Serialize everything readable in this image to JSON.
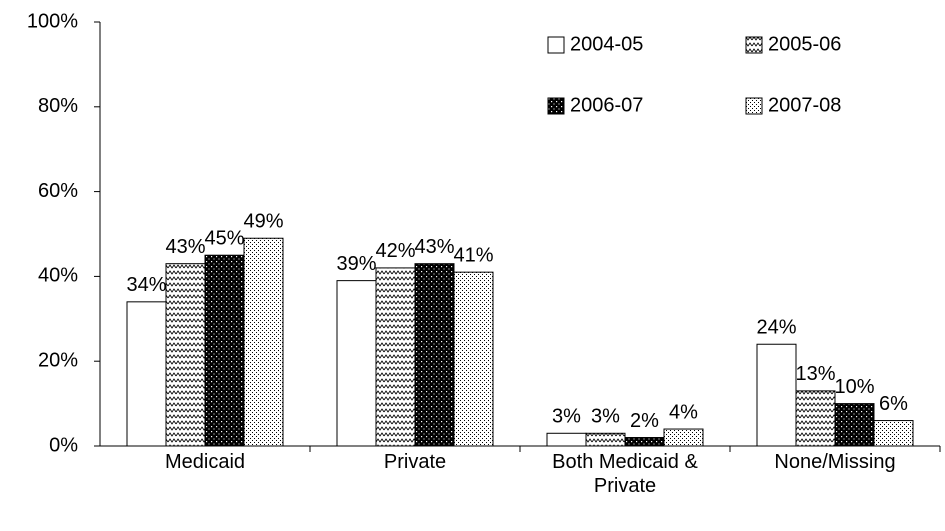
{
  "chart_data": {
    "type": "bar",
    "categories": [
      "Medicaid",
      "Private",
      "Both Medicaid & Private",
      "None/Missing"
    ],
    "series": [
      {
        "name": "2004-05",
        "color": "#ffffff",
        "pattern": "solid",
        "values": [
          34,
          39,
          3,
          24
        ],
        "value_labels": [
          "34%",
          "39%",
          "3%",
          "24%"
        ]
      },
      {
        "name": "2005-06",
        "color": "#ffffff",
        "pattern": "zigzag",
        "values": [
          43,
          42,
          3,
          13
        ],
        "value_labels": [
          "43%",
          "42%",
          "3%",
          "13%"
        ]
      },
      {
        "name": "2006-07",
        "color": "#000000",
        "pattern": "dots-on-dark",
        "values": [
          45,
          43,
          2,
          10
        ],
        "value_labels": [
          "45%",
          "43%",
          "2%",
          "10%"
        ]
      },
      {
        "name": "2007-08",
        "color": "#ffffff",
        "pattern": "dots-on-light",
        "values": [
          49,
          41,
          4,
          6
        ],
        "value_labels": [
          "49%",
          "41%",
          "4%",
          "6%"
        ]
      }
    ],
    "ylim": [
      0,
      100
    ],
    "yticks": [
      {
        "value": 0,
        "label": "0%"
      },
      {
        "value": 20,
        "label": "20%"
      },
      {
        "value": 40,
        "label": "40%"
      },
      {
        "value": 60,
        "label": "60%"
      },
      {
        "value": 80,
        "label": "80%"
      },
      {
        "value": 100,
        "label": "100%"
      }
    ],
    "grid": false,
    "legend": "top-right"
  }
}
